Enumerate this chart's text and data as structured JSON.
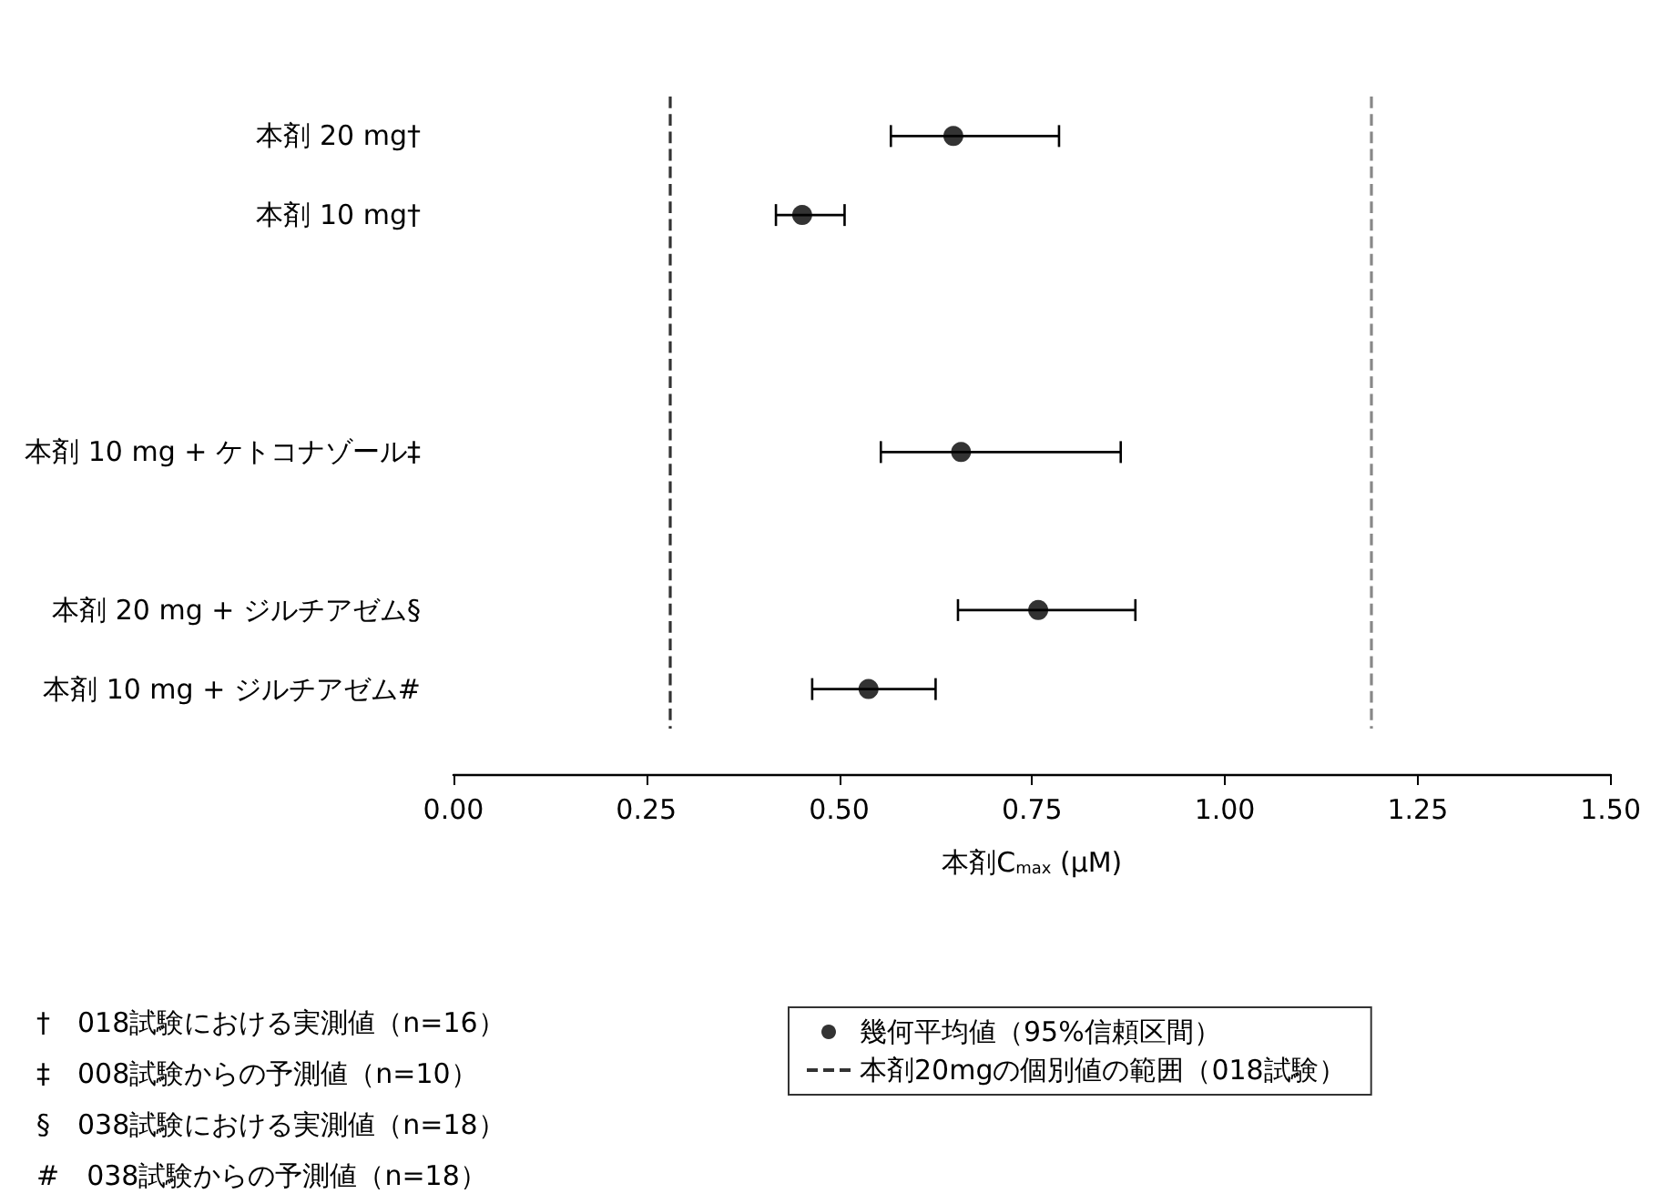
{
  "chart_data": {
    "type": "scatter",
    "orientation": "horizontal",
    "categories": [
      "本剤 20 mg†",
      "本剤 10 mg†",
      null,
      null,
      "本剤 10 mg + ケトコナゾール‡",
      null,
      "本剤 20 mg + ジルチアゼム§",
      "本剤 10 mg + ジルチアゼム#"
    ],
    "series": [
      {
        "name": "幾何平均値（95%信頼区間）",
        "color": "#000000",
        "values": [
          0.648,
          0.452,
          null,
          null,
          0.658,
          null,
          0.758,
          0.538
        ],
        "errors": [
          [
            0.567,
            0.785
          ],
          [
            0.418,
            0.507
          ],
          null,
          null,
          [
            0.554,
            0.865
          ],
          null,
          [
            0.654,
            0.884
          ],
          [
            0.465,
            0.625
          ]
        ]
      }
    ],
    "xlabel": "本剤C$_{max}$ (μM)",
    "xlim": [
      0,
      1.5
    ],
    "xticks": [
      {
        "value": 0,
        "label": "0.00"
      },
      {
        "value": 0.25,
        "label": "0.25"
      },
      {
        "value": 0.5,
        "label": "0.50"
      },
      {
        "value": 0.75,
        "label": "0.75"
      },
      {
        "value": 1,
        "label": "1.00"
      },
      {
        "value": 1.25,
        "label": "1.25"
      },
      {
        "value": 1.5,
        "label": "1.50"
      }
    ],
    "ref_lines": [
      {
        "axis": "x",
        "value": 0.282,
        "label": "本剤20mgの個別値の範囲（018試験）",
        "color": "#333333",
        "line_style": "dashed"
      },
      {
        "axis": "x",
        "value": 1.193,
        "color": "#888888",
        "line_style": "dashed"
      }
    ],
    "annotations": [
      "†　018試験における実測値（n=16）",
      "‡　008試験からの予測値（n=10）",
      "§　038試験における実測値（n=18）",
      "#　038試験からの予測値（n=18）"
    ],
    "legend": "bottom right",
    "marker": "circle",
    "grid": false
  }
}
